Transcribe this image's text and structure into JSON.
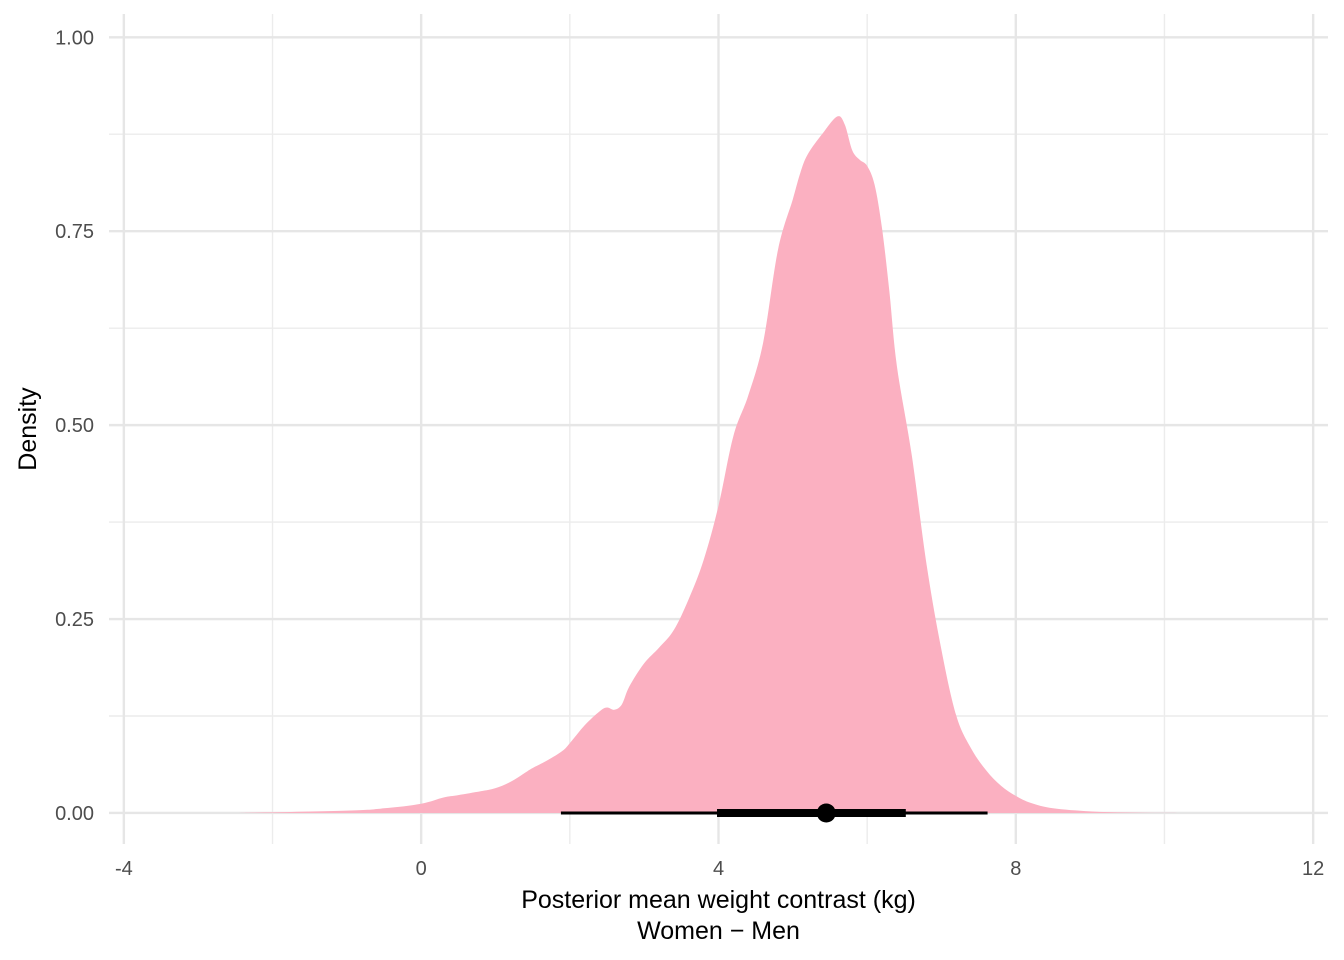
{
  "chart_data": {
    "type": "area",
    "xlabel": "Posterior mean weight contrast (kg)",
    "xlabel_line2": "Women − Men",
    "ylabel": "Density",
    "xlim": [
      -4.2,
      12.2
    ],
    "ylim": [
      -0.04,
      1.03
    ],
    "x_ticks": [
      -4,
      0,
      4,
      8,
      12
    ],
    "x_tick_labels": [
      "-4",
      "0",
      "4",
      "8",
      "12"
    ],
    "y_ticks": [
      0,
      0.25,
      0.5,
      0.75,
      1
    ],
    "y_tick_labels": [
      "0.00",
      "0.25",
      "0.50",
      "0.75",
      "1.00"
    ],
    "grid": true,
    "fill_color": "#fbb0c1",
    "interval_color": "#000000",
    "density": {
      "x": [
        -2.5,
        -1.0,
        -0.5,
        0.0,
        0.3,
        0.5,
        0.8,
        1.0,
        1.2,
        1.4,
        1.5,
        1.7,
        1.9,
        2.0,
        2.2,
        2.4,
        2.5,
        2.6,
        2.7,
        2.8,
        3.0,
        3.2,
        3.4,
        3.6,
        3.8,
        4.0,
        4.2,
        4.4,
        4.6,
        4.8,
        5.0,
        5.1,
        5.2,
        5.4,
        5.6,
        5.7,
        5.8,
        5.9,
        6.0,
        6.1,
        6.2,
        6.3,
        6.4,
        6.6,
        6.8,
        7.0,
        7.2,
        7.4,
        7.6,
        7.8,
        8.0,
        8.2,
        8.5,
        9.0,
        9.5,
        10.0,
        10.5
      ],
      "y": [
        0.0,
        0.003,
        0.006,
        0.012,
        0.02,
        0.023,
        0.028,
        0.032,
        0.04,
        0.052,
        0.058,
        0.068,
        0.08,
        0.09,
        0.113,
        0.131,
        0.136,
        0.133,
        0.14,
        0.163,
        0.193,
        0.213,
        0.236,
        0.276,
        0.326,
        0.396,
        0.486,
        0.538,
        0.606,
        0.726,
        0.791,
        0.825,
        0.849,
        0.876,
        0.898,
        0.887,
        0.854,
        0.842,
        0.834,
        0.81,
        0.754,
        0.671,
        0.576,
        0.461,
        0.32,
        0.21,
        0.125,
        0.083,
        0.055,
        0.035,
        0.022,
        0.013,
        0.006,
        0.002,
        0.0006,
        0.0001,
        0.0
      ],
      "smooth": true
    },
    "interval": {
      "point": 5.45,
      "inner": [
        3.98,
        6.52
      ],
      "outer": [
        1.88,
        7.62
      ]
    }
  }
}
